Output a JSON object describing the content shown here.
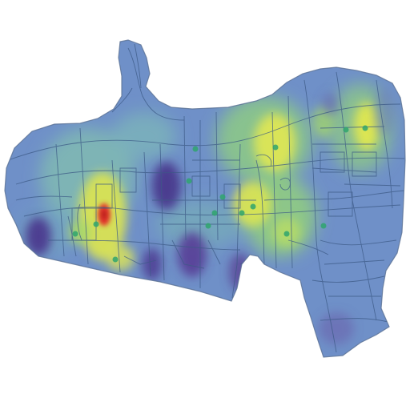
{
  "map": {
    "kind": "density-heatmap over street network",
    "colors": {
      "background": "#ffffff",
      "base_fill": "#6f90c8",
      "street": "#3c5a86",
      "boundary": "#5a7194",
      "point": "#2fa56e"
    },
    "color_ramp": [
      "#5a3e9a",
      "#6a80c4",
      "#6fb6b0",
      "#8ccf78",
      "#dfe652",
      "#e3332a"
    ],
    "hotspots": [
      {
        "id": "central-west-peak",
        "intensity": 1.0
      },
      {
        "id": "east-corridor",
        "intensity": 0.72
      },
      {
        "id": "center-north-band",
        "intensity": 0.6
      },
      {
        "id": "north-east-lobe",
        "intensity": 0.7
      },
      {
        "id": "south-central",
        "intensity": 0.55
      }
    ],
    "coldspots": [
      {
        "id": "west-cluster",
        "intensity": 0.9
      },
      {
        "id": "central-dark",
        "intensity": 0.85
      },
      {
        "id": "south-dark-1",
        "intensity": 0.8
      },
      {
        "id": "south-dark-2",
        "intensity": 0.75
      },
      {
        "id": "east-dark",
        "intensity": 0.7
      }
    ]
  }
}
